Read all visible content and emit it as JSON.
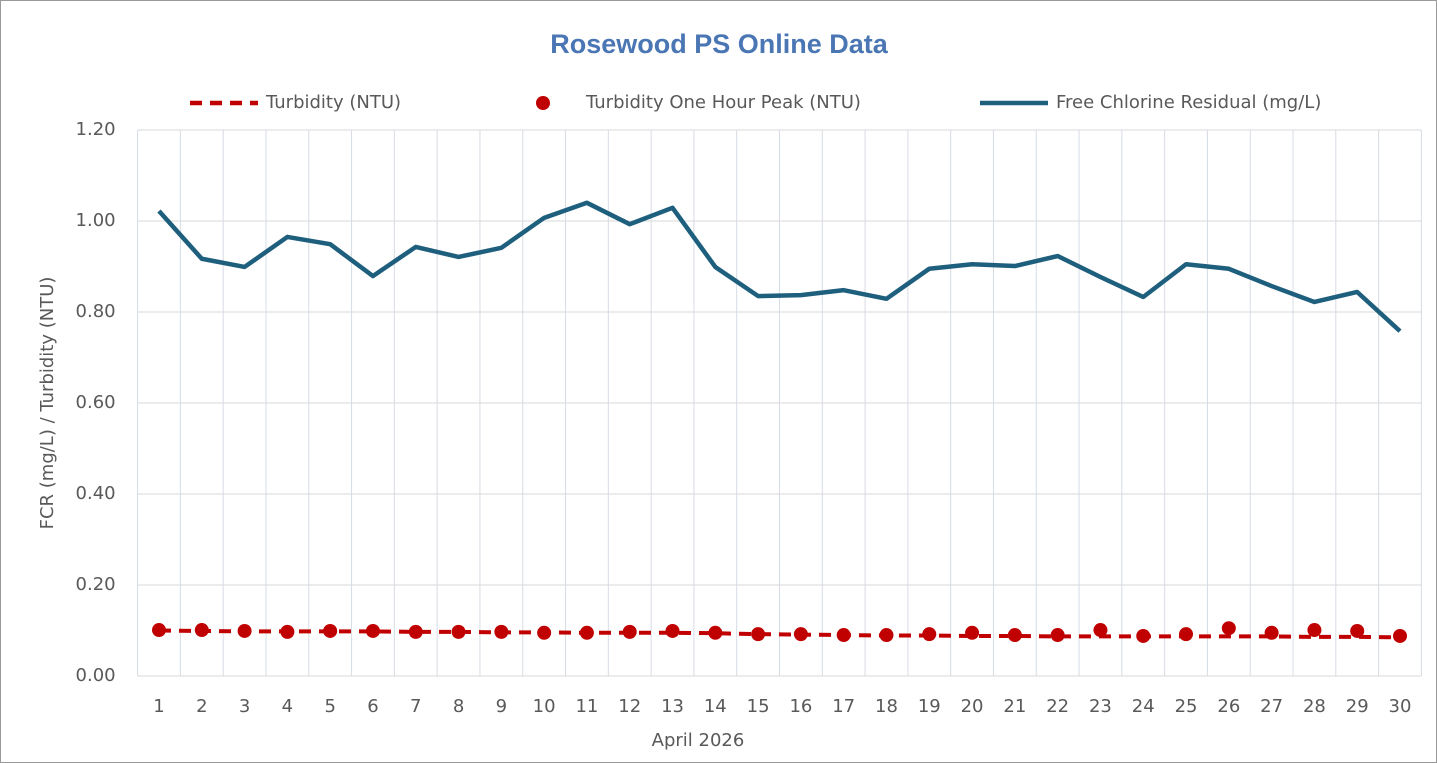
{
  "chart_data": {
    "type": "line",
    "title": "Rosewood PS Online Data",
    "x_label": "April 2026",
    "y_label": "FCR (mg/L) / Turbidity (NTU)",
    "categories": [
      "1",
      "2",
      "3",
      "4",
      "5",
      "6",
      "7",
      "8",
      "9",
      "10",
      "11",
      "12",
      "13",
      "14",
      "15",
      "16",
      "17",
      "18",
      "19",
      "20",
      "21",
      "22",
      "23",
      "24",
      "25",
      "26",
      "27",
      "28",
      "29",
      "30"
    ],
    "series": [
      {
        "name": "Turbidity (NTU)",
        "color": "#c00000",
        "style": "dashed",
        "values": [
          0.1,
          0.099,
          0.098,
          0.098,
          0.098,
          0.098,
          0.097,
          0.097,
          0.096,
          0.096,
          0.095,
          0.095,
          0.095,
          0.094,
          0.092,
          0.091,
          0.09,
          0.089,
          0.089,
          0.088,
          0.088,
          0.087,
          0.087,
          0.087,
          0.087,
          0.087,
          0.087,
          0.086,
          0.086,
          0.085
        ]
      },
      {
        "name": "Turbidity One Hour Peak (NTU)",
        "color": "#c00000",
        "style": "markers",
        "values": [
          0.101,
          0.101,
          0.099,
          0.097,
          0.099,
          0.099,
          0.097,
          0.097,
          0.097,
          0.095,
          0.095,
          0.097,
          0.099,
          0.095,
          0.092,
          0.092,
          0.09,
          0.09,
          0.092,
          0.095,
          0.09,
          0.09,
          0.101,
          0.088,
          0.092,
          0.105,
          0.095,
          0.101,
          0.099,
          0.088
        ]
      },
      {
        "name": "Free Chlorine Residual (mg/L)",
        "color": "#1f5f7e",
        "style": "solid",
        "values": [
          1.022,
          0.917,
          0.899,
          0.965,
          0.949,
          0.879,
          0.943,
          0.921,
          0.941,
          1.007,
          1.04,
          0.993,
          1.029,
          0.899,
          0.835,
          0.837,
          0.848,
          0.829,
          0.895,
          0.905,
          0.901,
          0.923,
          0.877,
          0.833,
          0.905,
          0.895,
          0.857,
          0.822,
          0.844,
          0.758
        ]
      }
    ],
    "ylim": [
      0,
      1.2
    ],
    "yticks": [
      {
        "value": 0,
        "label": "0.00"
      },
      {
        "value": 0.2,
        "label": "0.20"
      },
      {
        "value": 0.4,
        "label": "0.40"
      },
      {
        "value": 0.6,
        "label": "0.60"
      },
      {
        "value": 0.8,
        "label": "0.80"
      },
      {
        "value": 1.0,
        "label": "1.00"
      },
      {
        "value": 1.2,
        "label": "1.20"
      }
    ],
    "grid": true,
    "legend": "top"
  }
}
